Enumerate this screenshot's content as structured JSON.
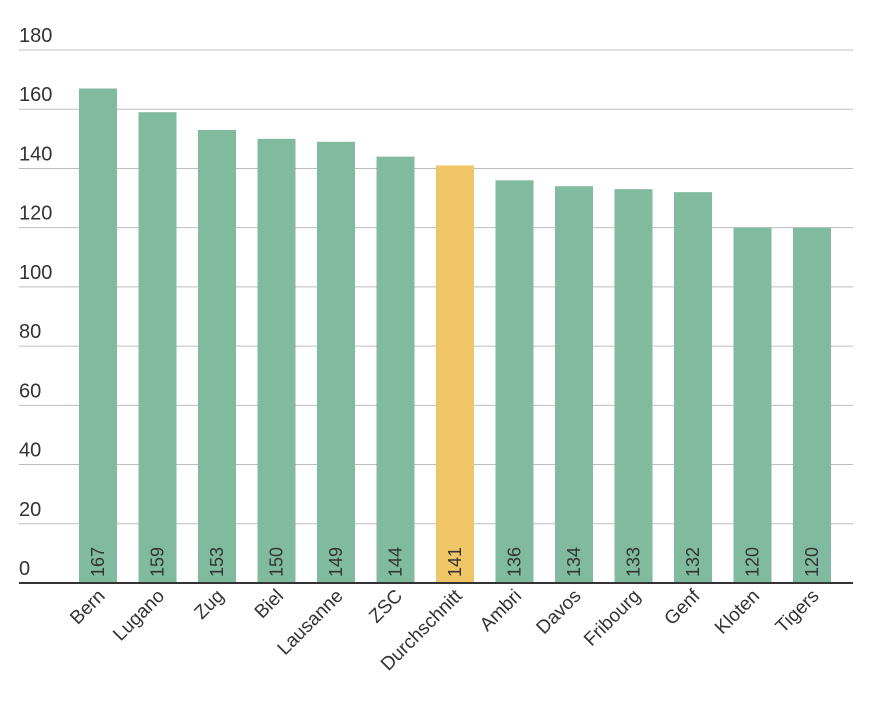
{
  "chart_data": {
    "type": "bar",
    "title": "",
    "xlabel": "",
    "ylabel": "",
    "ylim": [
      0,
      180
    ],
    "yticks": [
      0,
      20,
      40,
      60,
      80,
      100,
      120,
      140,
      160,
      180
    ],
    "grid": true,
    "legend": "none",
    "categories": [
      "Bern",
      "Lugano",
      "Zug",
      "Biel",
      "Lausanne",
      "ZSC",
      "Durchschnitt",
      "Ambri",
      "Davos",
      "Fribourg",
      "Genf",
      "Kloten",
      "Tigers"
    ],
    "values": [
      167,
      159,
      153,
      150,
      149,
      144,
      141,
      136,
      134,
      133,
      132,
      120,
      120
    ],
    "highlight_category": "Durchschnitt",
    "colors": {
      "bar": "#80bb9f",
      "highlight": "#f0c566",
      "grid": "#bdbdbd",
      "axis": "#333333",
      "text": "#333333"
    }
  }
}
